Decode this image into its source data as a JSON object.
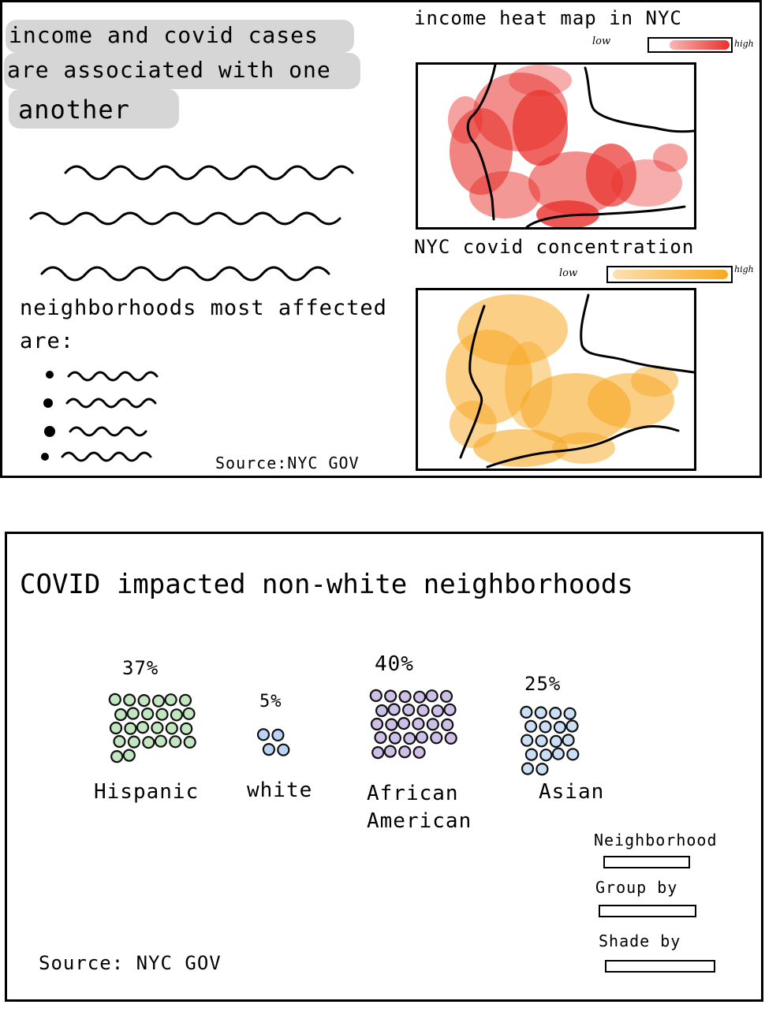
{
  "top_panel": {
    "headline": [
      "income and covid cases",
      "are associated with one",
      "another"
    ],
    "affected_title": [
      "neighborhoods most affected",
      "are:"
    ],
    "source": "Source:NYC GOV",
    "income_map": {
      "title": "income heat map in NYC",
      "legend_low": "low",
      "legend_high": "high",
      "color": "#e8312c"
    },
    "covid_map": {
      "title": "NYC covid concentration",
      "legend_low": "low",
      "legend_high": "high",
      "color": "#f7a823"
    }
  },
  "bottom_panel": {
    "title": "COVID impacted non-white neighborhoods",
    "source": "Source: NYC GOV",
    "groups": [
      {
        "label": "Hispanic",
        "percent": "37%",
        "color": "#8fd18a",
        "value": 37
      },
      {
        "label": "white",
        "percent": "5%",
        "color": "#7fb0ee",
        "value": 5
      },
      {
        "label": "African American",
        "percent": "40%",
        "color": "#a58bd3",
        "value": 40
      },
      {
        "label": "Asian",
        "percent": "25%",
        "color": "#9ec3ec",
        "value": 25
      }
    ],
    "controls": [
      {
        "label": "Neighborhood"
      },
      {
        "label": "Group by"
      },
      {
        "label": "Shade by"
      }
    ]
  }
}
